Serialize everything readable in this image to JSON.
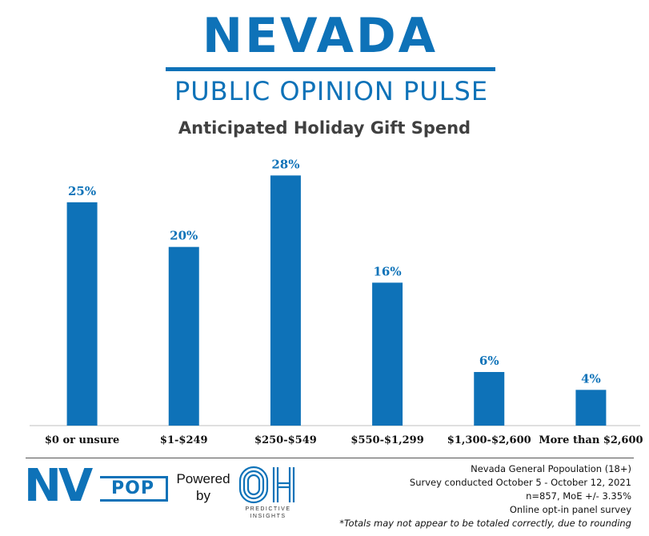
{
  "header": {
    "brand_title": "NEVADA",
    "brand_subtitle": "PUBLIC OPINION PULSE"
  },
  "chart_data": {
    "type": "bar",
    "title": "Anticipated Holiday Gift Spend",
    "categories": [
      "$0 or unsure",
      "$1-$249",
      "$250-$549",
      "$550-$1,299",
      "$1,300-$2,600",
      "More than $2,600"
    ],
    "values": [
      25,
      20,
      28,
      16,
      6,
      4
    ],
    "value_labels": [
      "25%",
      "20%",
      "28%",
      "16%",
      "6%",
      "4%"
    ],
    "ylim": [
      0,
      30
    ],
    "grid": false,
    "legend": "none",
    "colors": {
      "bar": "#0e72b8",
      "value_label": "#0e72b8"
    }
  },
  "footer": {
    "logo_left": {
      "nv": "NV",
      "pop": "POP"
    },
    "powered_by": [
      "Powered",
      "by"
    ],
    "logo_right": {
      "mark": "OH",
      "caption": [
        "PREDICTIVE",
        "INSIGHTS"
      ]
    },
    "notes": [
      "Nevada General Popoulation (18+)",
      "Survey conducted October 5 - October 12, 2021",
      "n=857, MoE +/- 3.35%",
      "Online opt-in panel survey"
    ],
    "disclaimer": "*Totals may not appear to be totaled correctly, due to rounding"
  }
}
